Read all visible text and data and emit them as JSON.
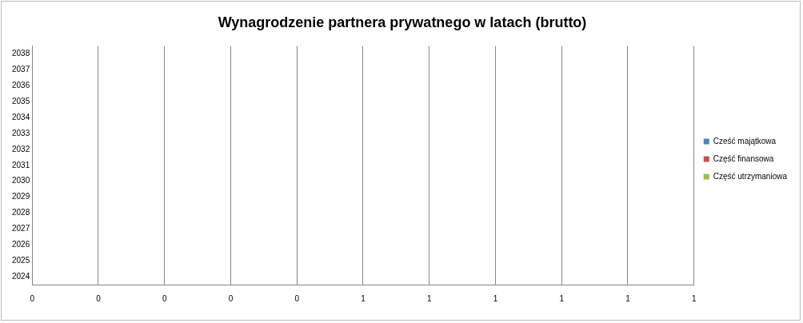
{
  "chart_data": {
    "type": "bar",
    "orientation": "horizontal",
    "title": "Wynagrodzenie partnera prywatnego w latach (brutto)",
    "categories": [
      "2038",
      "2037",
      "2036",
      "2035",
      "2034",
      "2033",
      "2032",
      "2031",
      "2030",
      "2029",
      "2028",
      "2027",
      "2026",
      "2025",
      "2024"
    ],
    "series": [
      {
        "name": "Cześć majątkowa",
        "color": "#4f81bd",
        "values": [
          0,
          0,
          0,
          0,
          0,
          0,
          0,
          0,
          0,
          0,
          0,
          0,
          0,
          0,
          0
        ]
      },
      {
        "name": "Część finansowa",
        "color": "#c0504d",
        "values": [
          0,
          0,
          0,
          0,
          0,
          0,
          0,
          0,
          0,
          0,
          0,
          0,
          0,
          0,
          0
        ]
      },
      {
        "name": "Część utrzymaniowa",
        "color": "#9bbb59",
        "values": [
          0,
          0,
          0,
          0,
          0,
          0,
          0,
          0,
          0,
          0,
          0,
          0,
          0,
          0,
          0
        ]
      }
    ],
    "xlim": [
      0,
      1
    ],
    "xticks": [
      {
        "value": 0,
        "label": "0"
      },
      {
        "value": 0.1,
        "label": "0"
      },
      {
        "value": 0.2,
        "label": "0"
      },
      {
        "value": 0.3,
        "label": "0"
      },
      {
        "value": 0.4,
        "label": "0"
      },
      {
        "value": 0.5,
        "label": "1"
      },
      {
        "value": 0.6,
        "label": "1"
      },
      {
        "value": 0.7,
        "label": "1"
      },
      {
        "value": 0.8,
        "label": "1"
      },
      {
        "value": 0.9,
        "label": "1"
      },
      {
        "value": 1,
        "label": "1"
      }
    ],
    "grid": "x",
    "legend": "right"
  }
}
